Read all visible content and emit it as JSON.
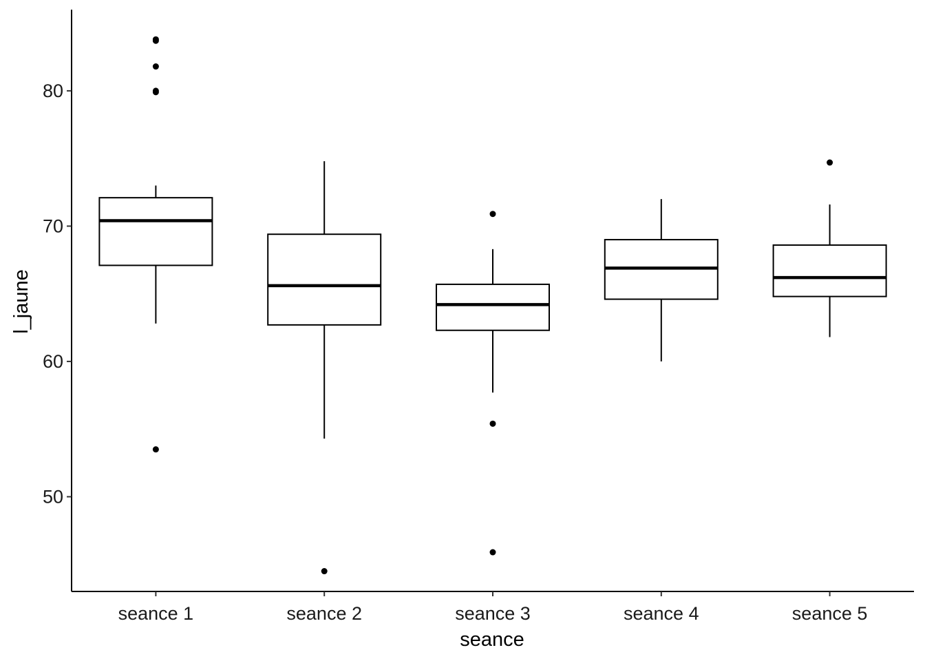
{
  "chart_data": {
    "type": "boxplot",
    "xlabel": "seance",
    "ylabel": "l_jaune",
    "categories": [
      "seance 1",
      "seance 2",
      "seance 3",
      "seance 4",
      "seance 5"
    ],
    "ylim": [
      43,
      86
    ],
    "yticks": [
      50,
      60,
      70,
      80
    ],
    "boxes": [
      {
        "category": "seance 1",
        "whisker_low": 62.8,
        "q1": 67.1,
        "median": 70.4,
        "q3": 72.1,
        "whisker_high": 73.0,
        "outliers": [
          83.8,
          83.7,
          81.8,
          80.0,
          79.9,
          53.5
        ]
      },
      {
        "category": "seance 2",
        "whisker_low": 54.3,
        "q1": 62.7,
        "median": 65.6,
        "q3": 69.4,
        "whisker_high": 74.8,
        "outliers": [
          44.5
        ]
      },
      {
        "category": "seance 3",
        "whisker_low": 57.7,
        "q1": 62.3,
        "median": 64.2,
        "q3": 65.7,
        "whisker_high": 68.3,
        "outliers": [
          70.9,
          55.4,
          45.9
        ]
      },
      {
        "category": "seance 4",
        "whisker_low": 60.0,
        "q1": 64.6,
        "median": 66.9,
        "q3": 69.0,
        "whisker_high": 72.0,
        "outliers": []
      },
      {
        "category": "seance 5",
        "whisker_low": 61.8,
        "q1": 64.8,
        "median": 66.2,
        "q3": 68.6,
        "whisker_high": 71.6,
        "outliers": [
          74.7
        ]
      }
    ],
    "grid": false,
    "legend": "none",
    "colors": {
      "box_fill": "#ffffff",
      "stroke": "#000000",
      "text": "#1a1a1a"
    }
  }
}
